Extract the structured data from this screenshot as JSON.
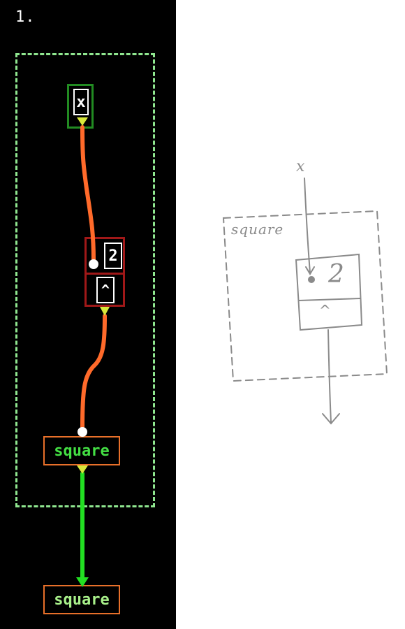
{
  "step_label": "1.",
  "graph": {
    "input_node": {
      "label": "x"
    },
    "power_node": {
      "constant": "2",
      "operator": "^"
    },
    "output_node": {
      "label": "square"
    },
    "result_node": {
      "label": "square"
    }
  },
  "sketch": {
    "input_label": "x",
    "frame_label": "square",
    "constant": "2",
    "operator": "^"
  },
  "colors": {
    "background": "#000000",
    "dashed_frame": "#8fe68f",
    "input_border": "#228b22",
    "power_border": "#a01818",
    "wire_orange": "#ff6a2a",
    "wire_green": "#22e022",
    "port_yellow": "#d8e83a",
    "node_border_orange": "#e8702a",
    "sketch_gray": "#8a8a8a"
  }
}
